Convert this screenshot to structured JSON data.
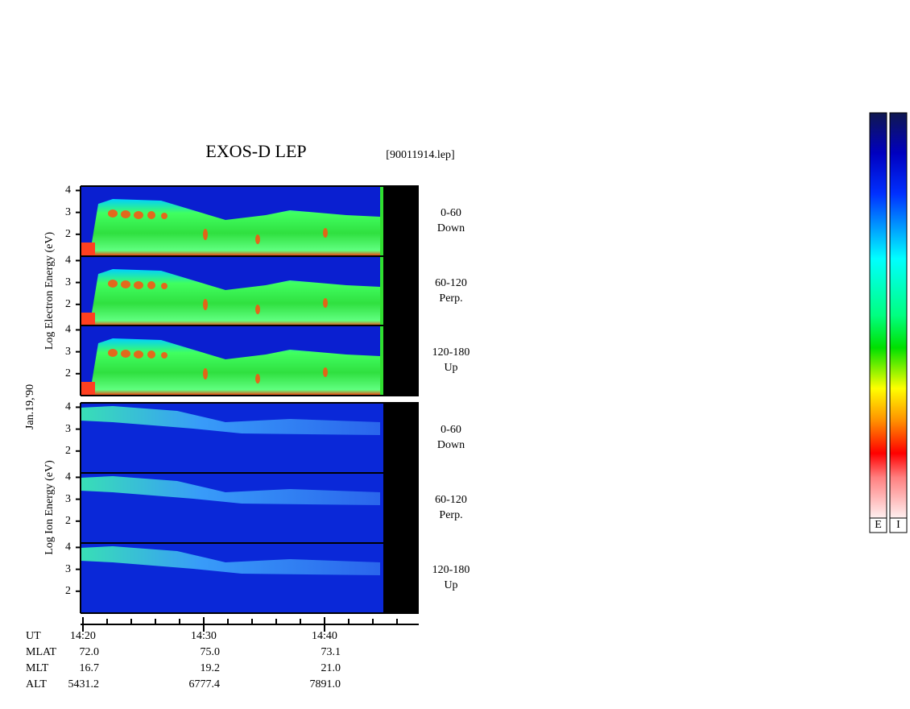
{
  "title": "EXOS-D LEP",
  "file_label": "[90011914.lep]",
  "date_label": "Jan.19,'90",
  "electron_axis_label": "Log  Electron  Energy (eV)",
  "ion_axis_label": "Log  Ion  Energy (eV)",
  "energy_axis": {
    "ylim": [
      1,
      4.2
    ],
    "yticks": [
      2,
      3,
      4
    ]
  },
  "electron_panels": [
    {
      "angle": "0-60",
      "direction": "Down"
    },
    {
      "angle": "60-120",
      "direction": "Perp."
    },
    {
      "angle": "120-180",
      "direction": "Up"
    }
  ],
  "ion_panels": [
    {
      "angle": "0-60",
      "direction": "Down"
    },
    {
      "angle": "60-120",
      "direction": "Perp."
    },
    {
      "angle": "120-180",
      "direction": "Up"
    }
  ],
  "time_axis": {
    "xlim": [
      20,
      47.8
    ],
    "xticks": [
      {
        "value": 20,
        "label": "14:20"
      },
      {
        "value": 30,
        "label": "14:30"
      },
      {
        "value": 40,
        "label": "14:40"
      }
    ],
    "minor_xticks": [
      22,
      24,
      26,
      28,
      32,
      34,
      36,
      38,
      42,
      44,
      46
    ]
  },
  "orbit_rows": [
    {
      "name": "MLAT",
      "values": [
        "72.0",
        "75.0",
        "73.1"
      ]
    },
    {
      "name": "MLT",
      "values": [
        "16.7",
        "19.2",
        "21.0"
      ]
    },
    {
      "name": "ALT",
      "values": [
        "5431.2",
        "6777.4",
        "7891.0"
      ]
    }
  ],
  "ut_label": "UT",
  "colorbars": [
    "E",
    "I"
  ]
}
